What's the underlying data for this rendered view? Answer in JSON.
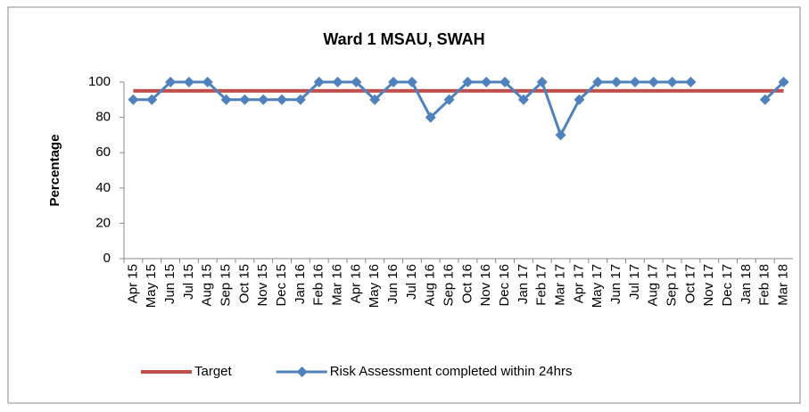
{
  "chart_data": {
    "type": "line",
    "title": "Ward 1 MSAU, SWAH",
    "y_label": "Percentage",
    "categories": [
      "Apr 15",
      "May 15",
      "Jun 15",
      "Jul 15",
      "Aug 15",
      "Sep 15",
      "Oct 15",
      "Nov 15",
      "Dec 15",
      "Jan 16",
      "Feb 16",
      "Mar 16",
      "Apr 16",
      "May 16",
      "Jun 16",
      "Jul 16",
      "Aug 16",
      "Sep 16",
      "Oct 16",
      "Nov 16",
      "Dec 16",
      "Jan 17",
      "Feb 17",
      "Mar 17",
      "Apr 17",
      "May 17",
      "Jun 17",
      "Jul 17",
      "Aug 17",
      "Sep 17",
      "Oct 17",
      "Nov 17",
      "Dec 17",
      "Jan 18",
      "Feb 18",
      "Mar 18"
    ],
    "series": [
      {
        "name": "Target",
        "color": "#c0504d",
        "marker": false,
        "values": [
          95,
          95,
          95,
          95,
          95,
          95,
          95,
          95,
          95,
          95,
          95,
          95,
          95,
          95,
          95,
          95,
          95,
          95,
          95,
          95,
          95,
          95,
          95,
          95,
          95,
          95,
          95,
          95,
          95,
          95,
          95,
          95,
          95,
          95,
          95,
          95
        ]
      },
      {
        "name": "Risk Assessment completed within 24hrs",
        "color": "#4f81bd",
        "marker": true,
        "values": [
          90,
          90,
          100,
          100,
          100,
          90,
          90,
          90,
          90,
          90,
          100,
          100,
          100,
          90,
          100,
          100,
          80,
          90,
          100,
          100,
          100,
          90,
          100,
          70,
          90,
          100,
          100,
          100,
          100,
          100,
          100,
          null,
          null,
          null,
          90,
          100
        ]
      }
    ],
    "ylim": [
      0,
      100
    ],
    "yticks": [
      0,
      20,
      40,
      60,
      80,
      100
    ],
    "grid": false,
    "legend": "bottom"
  }
}
